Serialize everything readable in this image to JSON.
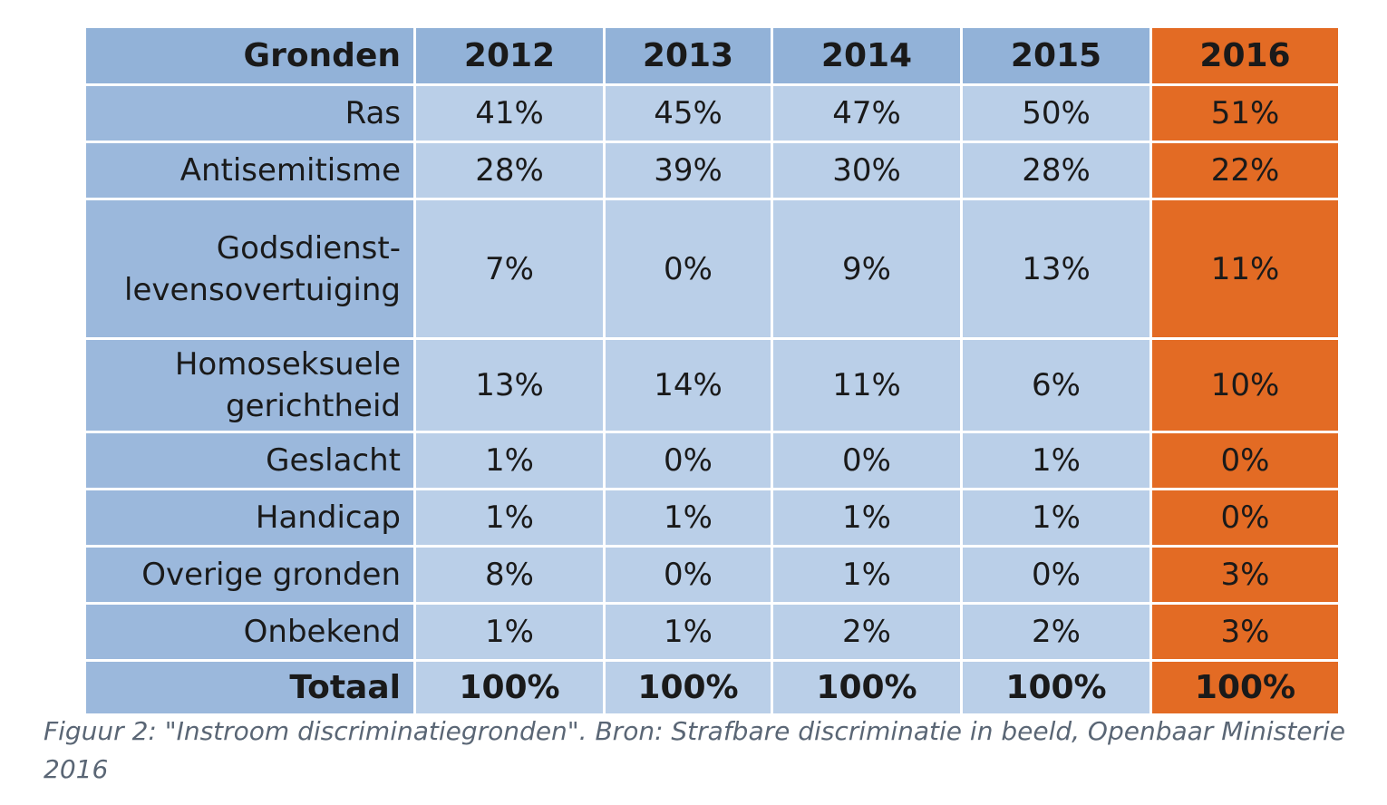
{
  "chart_data": {
    "type": "table",
    "columns": [
      "Gronden",
      "2012",
      "2013",
      "2014",
      "2015",
      "2016"
    ],
    "highlight_column": "2016",
    "colors": {
      "header_bg": "#92b2d8",
      "label_bg": "#9bb8dc",
      "cell_bg": "#bacfe8",
      "highlight_bg": "#e36b24"
    },
    "rows": [
      {
        "label": "Ras",
        "values": [
          "41%",
          "45%",
          "47%",
          "50%",
          "51%"
        ]
      },
      {
        "label": "Antisemitisme",
        "values": [
          "28%",
          "39%",
          "30%",
          "28%",
          "22%"
        ]
      },
      {
        "label": "Godsdienst-levensovertuiging",
        "values": [
          "7%",
          "0%",
          "9%",
          "13%",
          "11%"
        ]
      },
      {
        "label": "Homoseksuele gerichtheid",
        "values": [
          "13%",
          "14%",
          "11%",
          "6%",
          "10%"
        ]
      },
      {
        "label": "Geslacht",
        "values": [
          "1%",
          "0%",
          "0%",
          "1%",
          "0%"
        ]
      },
      {
        "label": "Handicap",
        "values": [
          "1%",
          "1%",
          "1%",
          "1%",
          "0%"
        ]
      },
      {
        "label": "Overige gronden",
        "values": [
          "8%",
          "0%",
          "1%",
          "0%",
          "3%"
        ]
      },
      {
        "label": "Onbekend",
        "values": [
          "1%",
          "1%",
          "2%",
          "2%",
          "3%"
        ]
      }
    ],
    "total": {
      "label": "Totaal",
      "values": [
        "100%",
        "100%",
        "100%",
        "100%",
        "100%"
      ]
    }
  },
  "caption": "Figuur 2: \"Instroom discriminatiegronden\". Bron: Strafbare discriminatie in beeld, Openbaar Ministerie 2016"
}
